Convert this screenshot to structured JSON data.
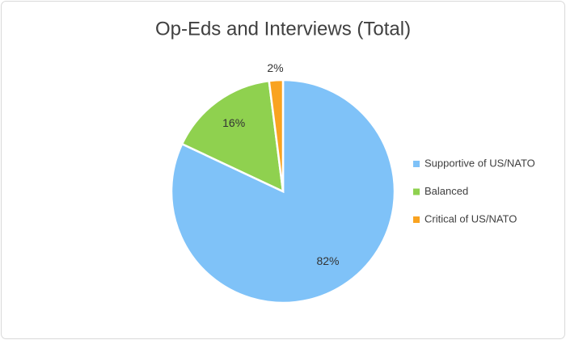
{
  "chart_data": {
    "type": "pie",
    "title": "Op-Eds and Interviews (Total)",
    "categories": [
      "Supportive of US/NATO",
      "Balanced",
      "Critical of US/NATO"
    ],
    "values": [
      82,
      16,
      2
    ],
    "value_labels": [
      "82%",
      "16%",
      "2%"
    ],
    "colors": [
      "#7fc2f8",
      "#8fd14f",
      "#f9a320"
    ],
    "legend": "right"
  }
}
